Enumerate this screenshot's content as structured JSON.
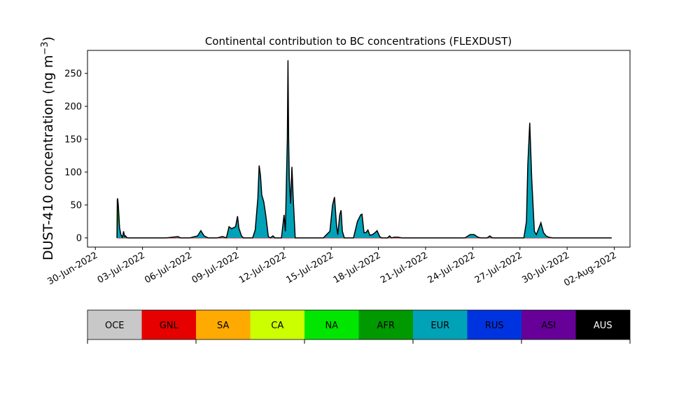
{
  "chart_data": {
    "type": "area",
    "title": "Continental contribution to BC concentrations (FLEXDUST)",
    "ylabel_main": "DUST-410 concentration (ng m",
    "ylabel_sup": "−3",
    "ylabel_end": ")",
    "xlabel": "",
    "x_start": "2022-06-29T12:00",
    "x_end": "2022-08-03T00:00",
    "ylim": [
      -14,
      285
    ],
    "yticks": [
      0,
      50,
      100,
      150,
      200,
      250
    ],
    "xticks": [
      {
        "date": "2022-06-30",
        "label": "30-Jun-2022"
      },
      {
        "date": "2022-07-03",
        "label": "03-Jul-2022"
      },
      {
        "date": "2022-07-06",
        "label": "06-Jul-2022"
      },
      {
        "date": "2022-07-09",
        "label": "09-Jul-2022"
      },
      {
        "date": "2022-07-12",
        "label": "12-Jul-2022"
      },
      {
        "date": "2022-07-15",
        "label": "15-Jul-2022"
      },
      {
        "date": "2022-07-18",
        "label": "18-Jul-2022"
      },
      {
        "date": "2022-07-21",
        "label": "21-Jul-2022"
      },
      {
        "date": "2022-07-24",
        "label": "24-Jul-2022"
      },
      {
        "date": "2022-07-27",
        "label": "27-Jul-2022"
      },
      {
        "date": "2022-07-30",
        "label": "30-Jul-2022"
      },
      {
        "date": "2022-08-02",
        "label": "02-Aug-2022"
      }
    ],
    "grid": false,
    "legend_position": "bottom",
    "total_line_color": "#000000",
    "series": [
      {
        "name": "AFR",
        "color": "#009900",
        "points": [
          [
            "2022-07-01T09:00",
            0
          ],
          [
            "2022-07-01T09:30",
            58
          ],
          [
            "2022-07-01T10:00",
            60
          ],
          [
            "2022-07-01T11:00",
            50
          ],
          [
            "2022-07-01T13:00",
            15
          ],
          [
            "2022-07-01T15:00",
            5
          ],
          [
            "2022-07-01T18:00",
            3
          ],
          [
            "2022-07-01T20:00",
            5
          ],
          [
            "2022-07-01T22:00",
            3
          ],
          [
            "2022-07-02T00:00",
            0.5
          ],
          [
            "2022-07-02T02:00",
            0
          ]
        ]
      },
      {
        "name": "EUR",
        "color": "#00a2b8",
        "points": [
          [
            "2022-07-01T09:00",
            0
          ],
          [
            "2022-07-01T09:30",
            8
          ],
          [
            "2022-07-01T11:00",
            30
          ],
          [
            "2022-07-01T13:00",
            10
          ],
          [
            "2022-07-01T15:00",
            5
          ],
          [
            "2022-07-01T17:00",
            1
          ],
          [
            "2022-07-01T19:00",
            10
          ],
          [
            "2022-07-01T21:00",
            2
          ],
          [
            "2022-07-02T00:00",
            0
          ],
          [
            "2022-07-04T12:00",
            0
          ],
          [
            "2022-07-05T06:00",
            2
          ],
          [
            "2022-07-05T10:00",
            0
          ],
          [
            "2022-07-06T00:00",
            0
          ],
          [
            "2022-07-06T12:00",
            3
          ],
          [
            "2022-07-06T17:00",
            11
          ],
          [
            "2022-07-06T22:00",
            3
          ],
          [
            "2022-07-07T04:00",
            0
          ],
          [
            "2022-07-07T18:00",
            0
          ],
          [
            "2022-07-08T02:00",
            2
          ],
          [
            "2022-07-08T08:00",
            0
          ],
          [
            "2022-07-08T12:00",
            17
          ],
          [
            "2022-07-08T16:00",
            14
          ],
          [
            "2022-07-08T22:00",
            17
          ],
          [
            "2022-07-09T01:00",
            33
          ],
          [
            "2022-07-09T03:00",
            15
          ],
          [
            "2022-07-09T07:00",
            3
          ],
          [
            "2022-07-09T10:00",
            0
          ],
          [
            "2022-07-10T00:00",
            0
          ],
          [
            "2022-07-10T04:00",
            12
          ],
          [
            "2022-07-10T08:00",
            60
          ],
          [
            "2022-07-10T10:00",
            110
          ],
          [
            "2022-07-10T12:00",
            95
          ],
          [
            "2022-07-10T14:00",
            65
          ],
          [
            "2022-07-10T17:00",
            55
          ],
          [
            "2022-07-10T20:00",
            35
          ],
          [
            "2022-07-11T00:00",
            2
          ],
          [
            "2022-07-11T03:00",
            0
          ],
          [
            "2022-07-11T07:00",
            3
          ],
          [
            "2022-07-11T10:00",
            0
          ],
          [
            "2022-07-11T20:00",
            0
          ],
          [
            "2022-07-12T00:00",
            35
          ],
          [
            "2022-07-12T02:00",
            10
          ],
          [
            "2022-07-12T05:00",
            150
          ],
          [
            "2022-07-12T06:00",
            270
          ],
          [
            "2022-07-12T07:00",
            150
          ],
          [
            "2022-07-12T08:00",
            90
          ],
          [
            "2022-07-12T10:00",
            52
          ],
          [
            "2022-07-12T12:00",
            108
          ],
          [
            "2022-07-12T14:00",
            60
          ],
          [
            "2022-07-12T17:00",
            0
          ],
          [
            "2022-07-14T12:00",
            0
          ],
          [
            "2022-07-14T22:00",
            10
          ],
          [
            "2022-07-15T02:00",
            50
          ],
          [
            "2022-07-15T05:00",
            62
          ],
          [
            "2022-07-15T08:00",
            20
          ],
          [
            "2022-07-15T10:00",
            5
          ],
          [
            "2022-07-15T13:00",
            35
          ],
          [
            "2022-07-15T15:00",
            42
          ],
          [
            "2022-07-15T17:00",
            10
          ],
          [
            "2022-07-15T20:00",
            0
          ],
          [
            "2022-07-16T10:00",
            0
          ],
          [
            "2022-07-16T16:00",
            25
          ],
          [
            "2022-07-16T21:00",
            35
          ],
          [
            "2022-07-16T23:00",
            36
          ],
          [
            "2022-07-17T02:00",
            8
          ],
          [
            "2022-07-17T05:00",
            8
          ],
          [
            "2022-07-17T08:00",
            12
          ],
          [
            "2022-07-17T11:00",
            4
          ],
          [
            "2022-07-17T15:00",
            5
          ],
          [
            "2022-07-17T19:00",
            8
          ],
          [
            "2022-07-17T22:00",
            11
          ],
          [
            "2022-07-18T02:00",
            2
          ],
          [
            "2022-07-18T05:00",
            0
          ],
          [
            "2022-07-18T14:00",
            0
          ],
          [
            "2022-07-18T17:00",
            3
          ],
          [
            "2022-07-18T20:00",
            0
          ],
          [
            "2022-07-19T00:00",
            1
          ],
          [
            "2022-07-19T06:00",
            1
          ],
          [
            "2022-07-19T12:00",
            0
          ],
          [
            "2022-07-23T12:00",
            0
          ],
          [
            "2022-07-23T20:00",
            5
          ],
          [
            "2022-07-24T02:00",
            5
          ],
          [
            "2022-07-24T08:00",
            1
          ],
          [
            "2022-07-24T12:00",
            0
          ],
          [
            "2022-07-24T22:00",
            0
          ],
          [
            "2022-07-25T02:00",
            3
          ],
          [
            "2022-07-25T06:00",
            0
          ],
          [
            "2022-07-27T06:00",
            0
          ],
          [
            "2022-07-27T10:00",
            25
          ],
          [
            "2022-07-27T12:00",
            110
          ],
          [
            "2022-07-27T15:00",
            175
          ],
          [
            "2022-07-27T18:00",
            90
          ],
          [
            "2022-07-27T22:00",
            10
          ],
          [
            "2022-07-28T01:00",
            5
          ],
          [
            "2022-07-28T05:00",
            15
          ],
          [
            "2022-07-28T08:00",
            23
          ],
          [
            "2022-07-28T12:00",
            8
          ],
          [
            "2022-07-28T16:00",
            3
          ],
          [
            "2022-07-28T20:00",
            1
          ],
          [
            "2022-07-29T02:00",
            0
          ],
          [
            "2022-08-01T20:00",
            0
          ]
        ]
      }
    ],
    "legend": [
      {
        "name": "OCE",
        "color": "#c8c8c8",
        "text_color": "#000000"
      },
      {
        "name": "GNL",
        "color": "#e60000",
        "text_color": "#000000"
      },
      {
        "name": "SA",
        "color": "#ffaa00",
        "text_color": "#000000"
      },
      {
        "name": "CA",
        "color": "#ccff00",
        "text_color": "#000000"
      },
      {
        "name": "NA",
        "color": "#00e600",
        "text_color": "#000000"
      },
      {
        "name": "AFR",
        "color": "#009900",
        "text_color": "#000000"
      },
      {
        "name": "EUR",
        "color": "#00a2b8",
        "text_color": "#000000"
      },
      {
        "name": "RUS",
        "color": "#0033e0",
        "text_color": "#000000"
      },
      {
        "name": "ASI",
        "color": "#660099",
        "text_color": "#000000"
      },
      {
        "name": "AUS",
        "color": "#000000",
        "text_color": "#ffffff"
      }
    ]
  }
}
